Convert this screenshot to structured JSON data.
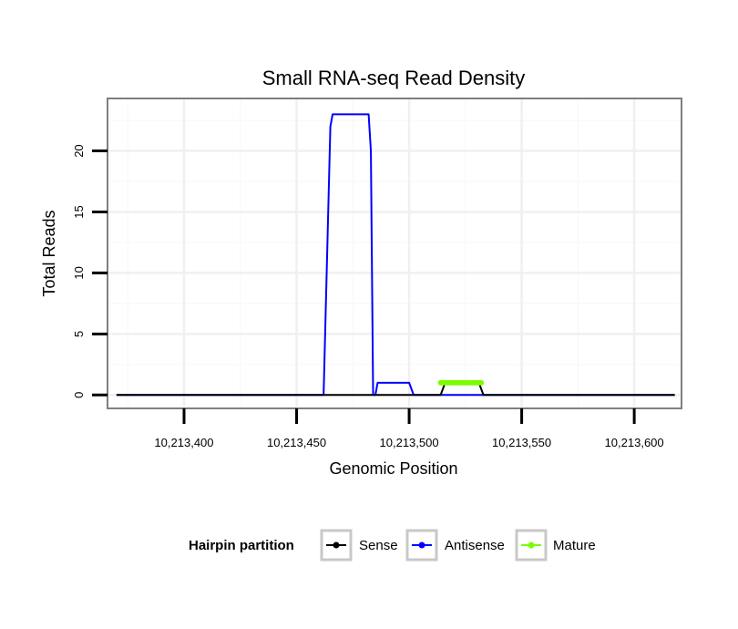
{
  "chart_data": {
    "type": "line",
    "title": "Small RNA-seq Read Density",
    "xlabel": "Genomic Position",
    "ylabel": "Total Reads",
    "xlim": [
      10213366,
      10213621
    ],
    "ylim": [
      -1.1,
      24.3
    ],
    "x_ticks": [
      10213400,
      10213450,
      10213500,
      10213550,
      10213600
    ],
    "x_tick_labels": [
      "10,213,400",
      "10,213,450",
      "10,213,500",
      "10,213,550",
      "10,213,600"
    ],
    "y_ticks": [
      0,
      5,
      10,
      15,
      20
    ],
    "y_tick_labels": [
      "0",
      "5",
      "10",
      "15",
      "20"
    ],
    "grid": true,
    "legend": {
      "title": "Hairpin partition",
      "position": "bottom",
      "entries": [
        "Sense",
        "Antisense",
        "Mature"
      ]
    },
    "series": [
      {
        "name": "Sense",
        "color": "#000000",
        "x": [
          10213370,
          10213514,
          10213516,
          10213531,
          10213533,
          10213618
        ],
        "y": [
          0,
          0,
          1,
          1,
          0,
          0
        ]
      },
      {
        "name": "Antisense",
        "color": "#0000ff",
        "x": [
          10213370,
          10213462,
          10213465,
          10213466,
          10213482,
          10213483,
          10213484,
          10213485,
          10213486,
          10213500,
          10213502,
          10213618
        ],
        "y": [
          0,
          0,
          22,
          23,
          23,
          20,
          0,
          0,
          1,
          1,
          0,
          0
        ]
      },
      {
        "name": "Mature",
        "color": "#7cfc00",
        "x": [
          10213514,
          10213515,
          10213516,
          10213517,
          10213518,
          10213519,
          10213520,
          10213521,
          10213522,
          10213523,
          10213524,
          10213525,
          10213526,
          10213527,
          10213528,
          10213529,
          10213530,
          10213531,
          10213532
        ],
        "y": [
          1,
          1,
          1,
          1,
          1,
          1,
          1,
          1,
          1,
          1,
          1,
          1,
          1,
          1,
          1,
          1,
          1,
          1,
          1
        ]
      }
    ]
  }
}
